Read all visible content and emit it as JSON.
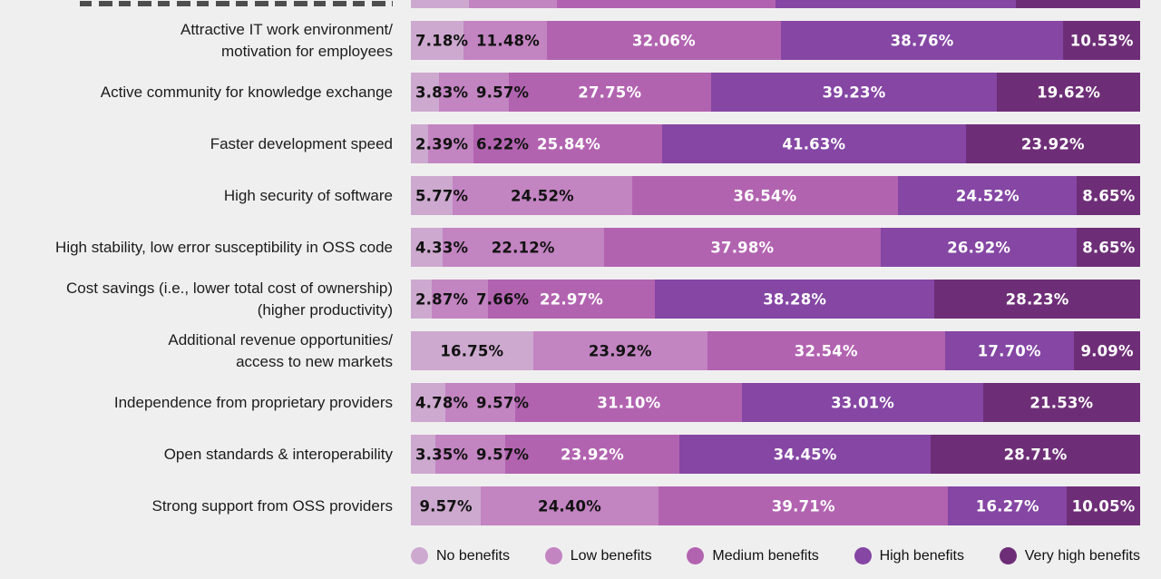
{
  "chart_data": {
    "type": "bar",
    "variant": "horizontal-stacked-100pct",
    "value_suffix": "%",
    "background_color": "#f0eff0",
    "legend_position": "bottom",
    "legend": [
      {
        "label": "No benefits",
        "color": "#cda9cf",
        "text_color": "#121212"
      },
      {
        "label": "Low benefits",
        "color": "#c384c2",
        "text_color": "#121212"
      },
      {
        "label": "Medium benefits",
        "color": "#b263b0",
        "text_color": "#ffffff"
      },
      {
        "label": "High benefits",
        "color": "#8546a4",
        "text_color": "#ffffff"
      },
      {
        "label": "Very high benefits",
        "color": "#6e2e77",
        "text_color": "#ffffff"
      }
    ],
    "categories": [
      "Attractive IT work environment/ motivation for employees",
      "Active community for knowledge exchange",
      "Faster development speed",
      "High security of software",
      "High stability, low error susceptibility in OSS code",
      "Cost savings (i.e., lower total cost of ownership) (higher productivity)",
      "Additional revenue opportunities/ access to new markets",
      "Independence from proprietary providers",
      "Open standards & interoperability",
      "Strong support from OSS providers"
    ],
    "rows": [
      {
        "label_lines": [
          "Attractive IT work environment/",
          "motivation for employees"
        ],
        "values": [
          7.18,
          11.48,
          32.06,
          38.76,
          10.53
        ]
      },
      {
        "label_lines": [
          "Active community for knowledge exchange"
        ],
        "values": [
          3.83,
          9.57,
          27.75,
          39.23,
          19.62
        ]
      },
      {
        "label_lines": [
          "Faster development speed"
        ],
        "values": [
          2.39,
          6.22,
          25.84,
          41.63,
          23.92
        ]
      },
      {
        "label_lines": [
          "High security of software"
        ],
        "values": [
          5.77,
          24.52,
          36.54,
          24.52,
          8.65
        ]
      },
      {
        "label_lines": [
          "High stability, low error susceptibility in OSS code"
        ],
        "values": [
          4.33,
          22.12,
          37.98,
          26.92,
          8.65
        ]
      },
      {
        "label_lines": [
          "Cost savings (i.e., lower total cost of ownership)",
          "(higher productivity)"
        ],
        "values": [
          2.87,
          7.66,
          22.97,
          38.28,
          28.23
        ]
      },
      {
        "label_lines": [
          "Additional revenue opportunities/",
          "access to new markets"
        ],
        "values": [
          16.75,
          23.92,
          32.54,
          17.7,
          9.09
        ]
      },
      {
        "label_lines": [
          "Independence from proprietary providers"
        ],
        "values": [
          4.78,
          9.57,
          31.1,
          33.01,
          21.53
        ]
      },
      {
        "label_lines": [
          "Open standards & interoperability"
        ],
        "values": [
          3.35,
          9.57,
          23.92,
          34.45,
          28.71
        ]
      },
      {
        "label_lines": [
          "Strong support from OSS providers"
        ],
        "values": [
          9.57,
          24.4,
          39.71,
          16.27,
          10.05
        ]
      }
    ],
    "cropped_top_strip": {
      "note": "bottom sliver of a row cut off by the top edge of the screenshot; values not readable",
      "approx_segments": [
        8,
        12,
        30,
        33,
        17
      ]
    }
  }
}
